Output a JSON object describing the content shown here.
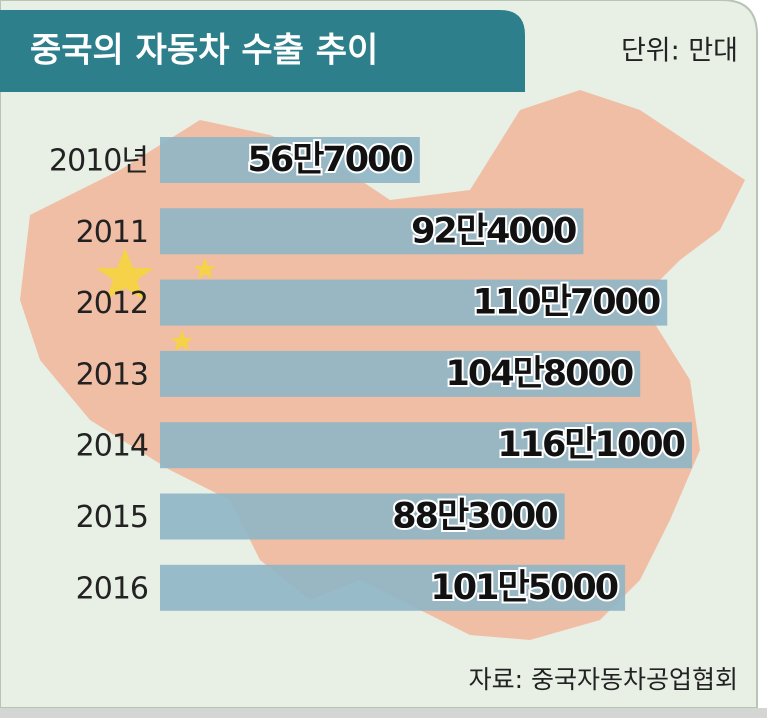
{
  "chart_data": {
    "type": "bar",
    "orientation": "horizontal",
    "title": "중국의 자동차 수출 추이",
    "unit_label": "단위: 만대",
    "source": "자료: 중국자동차공업협회",
    "categories": [
      "2010년",
      "2011",
      "2012",
      "2013",
      "2014",
      "2015",
      "2016"
    ],
    "values": [
      56.7,
      92.4,
      110.7,
      104.8,
      116.1,
      88.3,
      101.5
    ],
    "value_labels": [
      "56만7000",
      "92만4000",
      "110만7000",
      "104만8000",
      "116만1000",
      "88만3000",
      "101만5000"
    ],
    "color": "#8fb5c6"
  }
}
